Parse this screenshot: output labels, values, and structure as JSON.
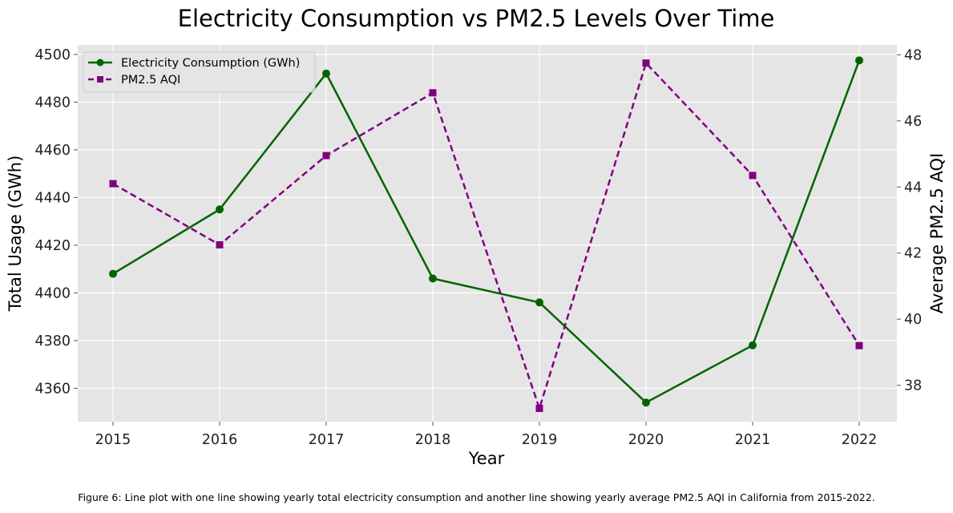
{
  "chart_data": {
    "type": "line",
    "title": "Electricity Consumption vs PM2.5 Levels Over Time",
    "xlabel": "Year",
    "ylabel_left": "Total Usage (GWh)",
    "ylabel_right": "Average PM2.5 AQI",
    "x": [
      "2015",
      "2016",
      "2017",
      "2018",
      "2019",
      "2020",
      "2021",
      "2022"
    ],
    "ylim_left": [
      4346,
      4504
    ],
    "yticks_left": [
      "4360",
      "4380",
      "4400",
      "4420",
      "4440",
      "4460",
      "4480",
      "4500"
    ],
    "ylim_right": [
      36.9,
      48.3
    ],
    "yticks_right": [
      "38",
      "40",
      "42",
      "44",
      "46",
      "48"
    ],
    "grid": true,
    "legend_position": "top-left",
    "series": [
      {
        "name": "Electricity Consumption (GWh)",
        "axis": "left",
        "color": "#006400",
        "line_style": "solid",
        "marker": "circle",
        "values": [
          4408,
          4435,
          4492,
          4406,
          4396,
          4354,
          4378,
          4497.5
        ]
      },
      {
        "name": "PM2.5 AQI",
        "axis": "right",
        "color": "#800080",
        "line_style": "dashed",
        "marker": "square",
        "values": [
          44.1,
          42.25,
          44.95,
          46.85,
          37.3,
          47.75,
          44.35,
          39.2
        ]
      }
    ]
  },
  "caption": "Figure 6: Line plot with one line showing yearly total electricity consumption and another line showing yearly average PM2.5 AQI in California from 2015-2022."
}
